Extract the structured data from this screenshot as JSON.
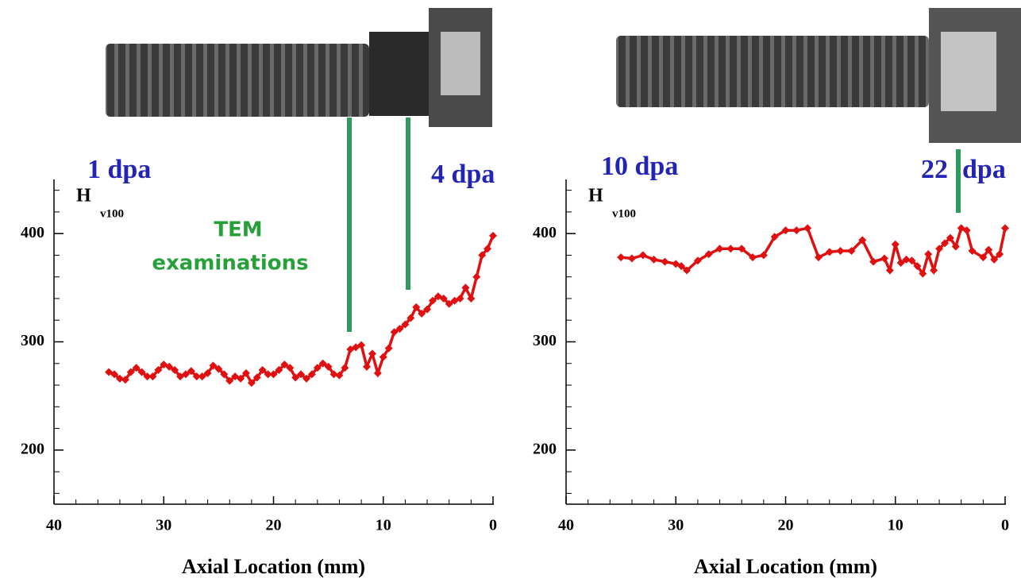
{
  "chart_data": [
    {
      "type": "line",
      "ylabel": "H",
      "ylabel_sub": "v100",
      "xlabel": "Axial Location (mm)",
      "annotations": [
        "1 dpa",
        "4 dpa",
        "TEM",
        "examinations"
      ],
      "xlim": [
        40,
        0
      ],
      "ylim": [
        150,
        450
      ],
      "xticks": [
        40,
        30,
        20,
        10,
        0
      ],
      "yticks": [
        200,
        300,
        400
      ],
      "x_minor_ticks": [
        38,
        36,
        34,
        32,
        28,
        26,
        24,
        22,
        18,
        16,
        14,
        12,
        8,
        6,
        4,
        2
      ],
      "y_minor_ticks": [
        160,
        180,
        220,
        240,
        260,
        280,
        320,
        340,
        360,
        380,
        420,
        440
      ],
      "series": [
        {
          "color": "#e01010",
          "x": [
            35,
            34.5,
            34,
            33.5,
            33,
            32.5,
            32,
            31.5,
            31,
            30.5,
            30,
            29.5,
            29,
            28.5,
            28,
            27.5,
            27,
            26.5,
            26,
            25.5,
            25,
            24.5,
            24,
            23.5,
            23,
            22.5,
            22,
            21.5,
            21,
            20.5,
            20,
            19.5,
            19,
            18.5,
            18,
            17.5,
            17,
            16.5,
            16,
            15.5,
            15,
            14.5,
            14,
            13.5,
            13,
            12.5,
            12,
            11.5,
            11,
            10.5,
            10,
            9.5,
            9,
            8.5,
            8,
            7.5,
            7,
            6.5,
            6,
            5.5,
            5,
            4.5,
            4,
            3.5,
            3,
            2.5,
            2,
            1.5,
            1,
            0.5,
            0
          ],
          "values": [
            272,
            270,
            266,
            265,
            272,
            276,
            272,
            268,
            268,
            274,
            279,
            277,
            274,
            268,
            270,
            273,
            268,
            268,
            271,
            278,
            275,
            270,
            264,
            268,
            266,
            271,
            262,
            267,
            274,
            270,
            270,
            274,
            279,
            276,
            267,
            270,
            266,
            270,
            276,
            280,
            277,
            270,
            269,
            276,
            293,
            295,
            297,
            277,
            289,
            271,
            286,
            294,
            309,
            312,
            316,
            322,
            332,
            326,
            330,
            338,
            342,
            340,
            335,
            338,
            340,
            350,
            340,
            360,
            380,
            386,
            398
          ]
        }
      ]
    },
    {
      "type": "line",
      "ylabel": "H",
      "ylabel_sub": "v100",
      "xlabel": "Axial Location (mm)",
      "annotations": [
        "10 dpa",
        "22",
        "dpa"
      ],
      "xlim": [
        40,
        0
      ],
      "ylim": [
        150,
        450
      ],
      "xticks": [
        40,
        30,
        20,
        10,
        0
      ],
      "yticks": [
        200,
        300,
        400
      ],
      "x_minor_ticks": [
        38,
        36,
        34,
        32,
        28,
        26,
        24,
        22,
        18,
        16,
        14,
        12,
        8,
        6,
        4,
        2
      ],
      "y_minor_ticks": [
        160,
        180,
        220,
        240,
        260,
        280,
        320,
        340,
        360,
        380,
        420,
        440
      ],
      "series": [
        {
          "color": "#e01010",
          "x": [
            35,
            34,
            33,
            32,
            31,
            30,
            29.5,
            29,
            28,
            27,
            26,
            25,
            24,
            23,
            22,
            21,
            20,
            19,
            18,
            17,
            16,
            15,
            14,
            13,
            12,
            11,
            10.5,
            10,
            9.5,
            9,
            8.5,
            8,
            7.5,
            7,
            6.5,
            6,
            5.5,
            5,
            4.5,
            4,
            3.5,
            3,
            2,
            1.5,
            1,
            0.5,
            0
          ],
          "values": [
            378,
            377,
            380,
            376,
            374,
            372,
            370,
            366,
            375,
            381,
            386,
            386,
            386,
            378,
            380,
            397,
            403,
            403,
            405,
            378,
            383,
            384,
            384,
            394,
            374,
            377,
            366,
            390,
            373,
            376,
            375,
            370,
            363,
            381,
            366,
            386,
            391,
            396,
            388,
            405,
            403,
            384,
            378,
            385,
            376,
            381,
            405
          ]
        }
      ]
    }
  ]
}
